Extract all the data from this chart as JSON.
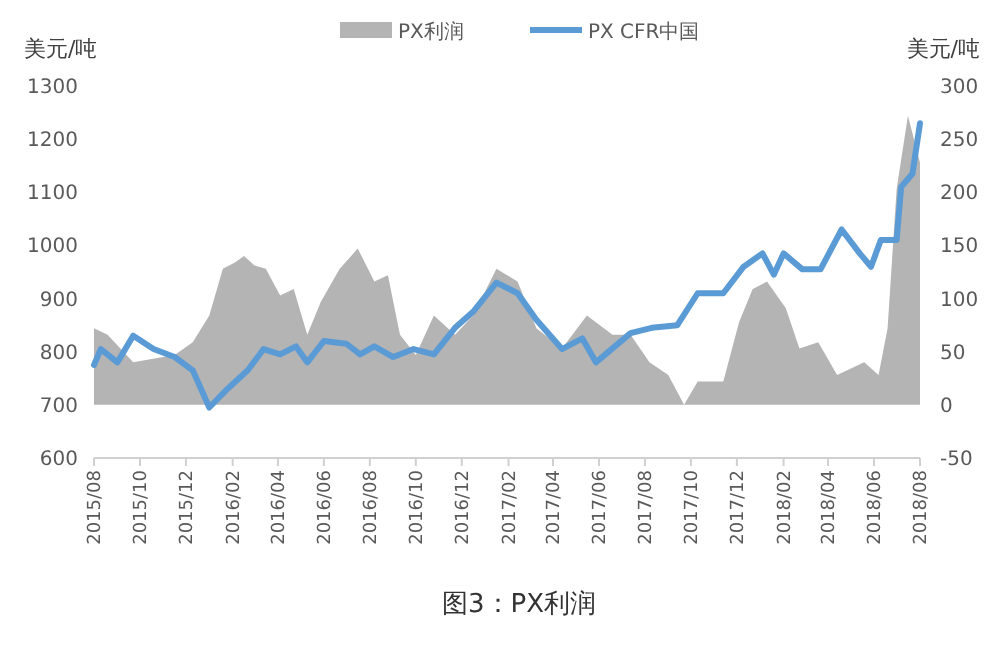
{
  "chart_data": {
    "type": "line",
    "ylabel": "美元/吨",
    "y2label": "美元/吨",
    "legend": "top",
    "grid": false,
    "xlim": [
      "2015-08-01",
      "2018-08-01"
    ],
    "xticks": [
      {
        "value": "2015-08",
        "label": "2015/08"
      },
      {
        "value": "2015-10",
        "label": "2015/10"
      },
      {
        "value": "2015-12",
        "label": "2015/12"
      },
      {
        "value": "2016-02",
        "label": "2016/02"
      },
      {
        "value": "2016-04",
        "label": "2016/04"
      },
      {
        "value": "2016-06",
        "label": "2016/06"
      },
      {
        "value": "2016-08",
        "label": "2016/08"
      },
      {
        "value": "2016-10",
        "label": "2016/10"
      },
      {
        "value": "2016-12",
        "label": "2016/12"
      },
      {
        "value": "2017-02",
        "label": "2017/02"
      },
      {
        "value": "2017-04",
        "label": "2017/04"
      },
      {
        "value": "2017-06",
        "label": "2017/06"
      },
      {
        "value": "2017-08",
        "label": "2017/08"
      },
      {
        "value": "2017-10",
        "label": "2017/10"
      },
      {
        "value": "2017-12",
        "label": "2017/12"
      },
      {
        "value": "2018-02",
        "label": "2018/02"
      },
      {
        "value": "2018-04",
        "label": "2018/04"
      },
      {
        "value": "2018-06",
        "label": "2018/06"
      },
      {
        "value": "2018-08",
        "label": "2018/08"
      }
    ],
    "ylim": [
      600,
      1300
    ],
    "yticks": [
      600,
      700,
      800,
      900,
      1000,
      1100,
      1200,
      1300
    ],
    "y2lim": [
      -50,
      300
    ],
    "y2ticks": [
      -50,
      0,
      50,
      100,
      150,
      200,
      250,
      300
    ],
    "annotations": [
      "图3：PX利润"
    ],
    "series": [
      {
        "name": "PX利润",
        "type": "area",
        "axis": "y2",
        "color": "#b4b4b4",
        "x": [
          "2015-08-01",
          "2015-08-19",
          "2015-09-22",
          "2015-11-16",
          "2015-12-10",
          "2016-01-01",
          "2016-01-19",
          "2016-02-04",
          "2016-02-16",
          "2016-03-01",
          "2016-03-16",
          "2016-04-04",
          "2016-04-22",
          "2016-05-10",
          "2016-05-28",
          "2016-06-22",
          "2016-07-16",
          "2016-08-07",
          "2016-08-25",
          "2016-09-10",
          "2016-10-01",
          "2016-10-25",
          "2016-11-22",
          "2016-12-16",
          "2017-01-16",
          "2017-02-13",
          "2017-03-10",
          "2017-04-13",
          "2017-05-16",
          "2017-06-19",
          "2017-07-13",
          "2017-08-07",
          "2017-09-01",
          "2017-09-22",
          "2017-10-10",
          "2017-11-13",
          "2017-12-04",
          "2017-12-22",
          "2018-01-10",
          "2018-02-04",
          "2018-02-22",
          "2018-03-19",
          "2018-04-13",
          "2018-05-19",
          "2018-06-07",
          "2018-06-19",
          "2018-07-01",
          "2018-07-16",
          "2018-08-01"
        ],
        "values": [
          72,
          66,
          40,
          47,
          59,
          84,
          128,
          134,
          140,
          131,
          128,
          103,
          109,
          66,
          97,
          128,
          147,
          116,
          122,
          66,
          47,
          84,
          66,
          84,
          128,
          116,
          72,
          53,
          84,
          66,
          66,
          40,
          28,
          0,
          22,
          22,
          78,
          109,
          116,
          91,
          53,
          59,
          28,
          40,
          28,
          72,
          203,
          272,
          228
        ]
      },
      {
        "name": "PX CFR中国",
        "axis": "y",
        "color": "#5b9bd5",
        "x": [
          "2015-08-01",
          "2015-08-10",
          "2015-09-01",
          "2015-09-22",
          "2015-10-19",
          "2015-11-16",
          "2015-12-10",
          "2016-01-01",
          "2016-01-25",
          "2016-02-21",
          "2016-03-13",
          "2016-04-04",
          "2016-04-25",
          "2016-05-10",
          "2016-06-01",
          "2016-07-01",
          "2016-07-19",
          "2016-08-07",
          "2016-09-01",
          "2016-09-28",
          "2016-10-25",
          "2016-11-22",
          "2016-12-16",
          "2017-01-16",
          "2017-02-13",
          "2017-03-10",
          "2017-04-13",
          "2017-05-10",
          "2017-05-28",
          "2017-07-13",
          "2017-08-10",
          "2017-09-13",
          "2017-10-10",
          "2017-11-13",
          "2017-12-10",
          "2018-01-04",
          "2018-01-19",
          "2018-02-01",
          "2018-02-26",
          "2018-03-22",
          "2018-04-19",
          "2018-05-13",
          "2018-05-28",
          "2018-06-10",
          "2018-07-01",
          "2018-07-07",
          "2018-07-22",
          "2018-08-01"
        ],
        "values": [
          775,
          805,
          780,
          830,
          805,
          790,
          765,
          695,
          730,
          765,
          805,
          795,
          810,
          780,
          820,
          815,
          795,
          810,
          790,
          805,
          795,
          845,
          875,
          930,
          910,
          860,
          805,
          825,
          780,
          835,
          845,
          850,
          910,
          910,
          960,
          985,
          945,
          985,
          955,
          955,
          1030,
          985,
          960,
          1010,
          1010,
          1110,
          1135,
          1230
        ]
      }
    ]
  }
}
